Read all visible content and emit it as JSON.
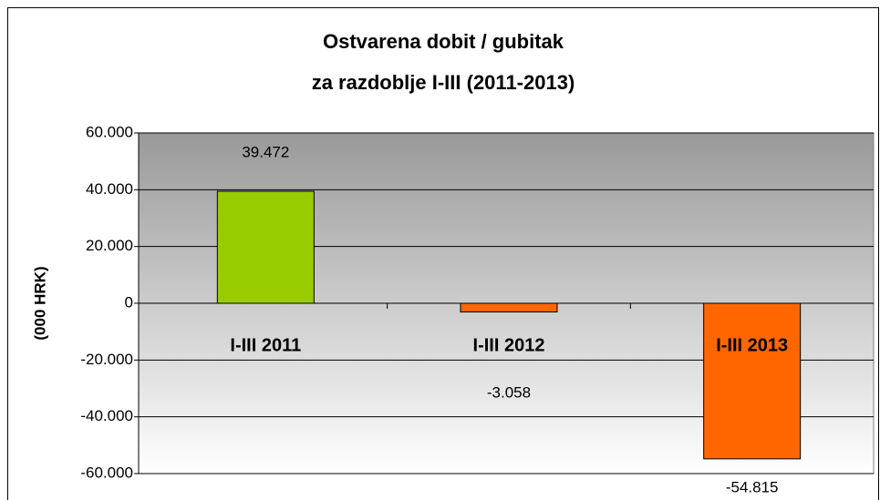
{
  "chart_data": {
    "type": "bar",
    "title": [
      "Ostvarena dobit / gubitak",
      "za razdoblje I-III (2011-2013)"
    ],
    "y_label": "(000 HRK)",
    "categories": [
      "I-III 2011",
      "I-III 2012",
      "I-III 2013"
    ],
    "values": [
      39472,
      -3058,
      -54815
    ],
    "value_labels": [
      "39.472",
      "-3.058",
      "-54.815"
    ],
    "colors": [
      "#99cc00",
      "#ff6600",
      "#ff6600"
    ],
    "ylim": [
      -60000,
      60000
    ],
    "yticks": [
      {
        "value": -60000,
        "label": "-60.000"
      },
      {
        "value": -40000,
        "label": "-40.000"
      },
      {
        "value": -20000,
        "label": "-20.000"
      },
      0,
      {
        "value": 20000,
        "label": "20.000"
      },
      {
        "value": 40000,
        "label": "40.000"
      },
      {
        "value": 60000,
        "label": "60.000"
      }
    ],
    "grid": true
  }
}
